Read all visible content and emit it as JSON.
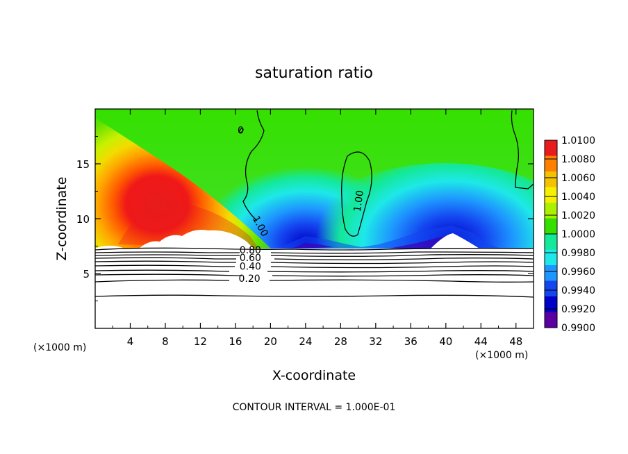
{
  "chart_data": {
    "type": "heatmap",
    "title": "saturation ratio",
    "xlabel": "X-coordinate",
    "ylabel": "Z-coordinate",
    "x_unit_left": "(×1000 m)",
    "x_unit_right": "(×1000 m)",
    "xlim": [
      0,
      50
    ],
    "ylim": [
      0,
      20
    ],
    "x_ticks": [
      4,
      8,
      12,
      16,
      20,
      24,
      28,
      32,
      36,
      40,
      44,
      48
    ],
    "x_tick_labels": [
      "4",
      "8",
      "12",
      "16",
      "20",
      "24",
      "28",
      "32",
      "36",
      "40",
      "44",
      "48"
    ],
    "y_ticks": [
      5,
      10,
      15
    ],
    "y_tick_labels": [
      "5",
      "10",
      "15"
    ],
    "colorbar": {
      "min": 0.99,
      "max": 1.01,
      "labels": [
        "1.0100",
        "1.0080",
        "1.0060",
        "1.0040",
        "1.0020",
        "1.0000",
        "0.9980",
        "0.9960",
        "0.9940",
        "0.9920",
        "0.9900"
      ],
      "colors": [
        "#e81c1c",
        "#ff7f00",
        "#f5c200",
        "#f5f000",
        "#aaf000",
        "#35e000",
        "#14e89a",
        "#1ee8e8",
        "#1e96ff",
        "#1446f0",
        "#0000c8",
        "#5a00a0"
      ]
    },
    "cloud_base_z": 7.3,
    "contour_labels": [
      {
        "text": "1.00",
        "x": 18.8,
        "z": 9.3,
        "angle": 62
      },
      {
        "text": "1.00",
        "x": 30.1,
        "z": 11.6,
        "angle": -82
      },
      {
        "text": "0",
        "x": 16.6,
        "z": 18.0,
        "angle": 0
      },
      {
        "text": "0.80",
        "x": 17.7,
        "z": 7.1,
        "angle": 0
      },
      {
        "text": "0.60",
        "x": 17.7,
        "z": 6.4,
        "angle": 0
      },
      {
        "text": "0.40",
        "x": 17.7,
        "z": 5.6,
        "angle": 0
      },
      {
        "text": "0.20",
        "x": 17.6,
        "z": 4.5,
        "angle": 0
      }
    ],
    "contour_interval_text": "CONTOUR INTERVAL = 1.000E-01"
  }
}
